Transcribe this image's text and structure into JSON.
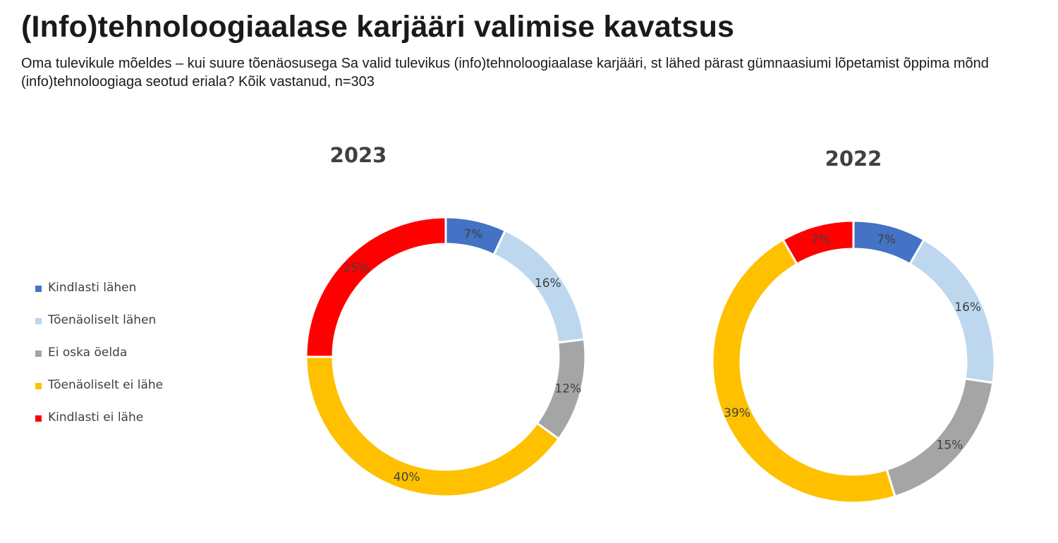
{
  "title": "(Info)tehnoloogiaalase karjääri valimise kavatsus",
  "subtitle": "Oma tulevikule mõeldes – kui suure tõenäosusega Sa valid tulevikus (info)tehnoloogiaalase karjääri, st lähed pärast gümnaasiumi lõpetamist õppima mõnd (info)tehnoloogiaga seotud eriala? Kõik vastanud, n=303",
  "chart_data": [
    {
      "type": "pie",
      "style": "donut",
      "title": "2023",
      "categories": [
        "Kindlasti lähen",
        "Tõenäoliselt lähen",
        "Ei oska öelda",
        "Tõenäoliselt ei lähe",
        "Kindlasti ei lähe"
      ],
      "values": [
        7,
        16,
        12,
        40,
        25
      ],
      "labels": [
        "7%",
        "16%",
        "12%",
        "40%",
        "25%"
      ],
      "colors": [
        "#4472C4",
        "#BDD7EE",
        "#A5A5A5",
        "#FFC000",
        "#FF0000"
      ],
      "legend": "left"
    },
    {
      "type": "pie",
      "style": "donut",
      "title": "2022",
      "categories": [
        "Kindlasti lähen",
        "Tõenäoliselt lähen",
        "Ei oska öelda",
        "Tõenäoliselt ei lähe",
        "Kindlasti ei lähe"
      ],
      "values": [
        7,
        16,
        15,
        39,
        7
      ],
      "labels": [
        "7%",
        "16%",
        "15%",
        "39%",
        "7%"
      ],
      "colors": [
        "#4472C4",
        "#BDD7EE",
        "#A5A5A5",
        "#FFC000",
        "#FF0000"
      ],
      "legend": "left"
    }
  ],
  "legend": {
    "items": [
      {
        "label": "Kindlasti lähen",
        "color": "#4472C4"
      },
      {
        "label": "Tõenäoliselt lähen",
        "color": "#BDD7EE"
      },
      {
        "label": "Ei oska öelda",
        "color": "#A5A5A5"
      },
      {
        "label": "Tõenäoliselt ei lähe",
        "color": "#FFC000"
      },
      {
        "label": "Kindlasti ei lähe",
        "color": "#FF0000"
      }
    ]
  }
}
